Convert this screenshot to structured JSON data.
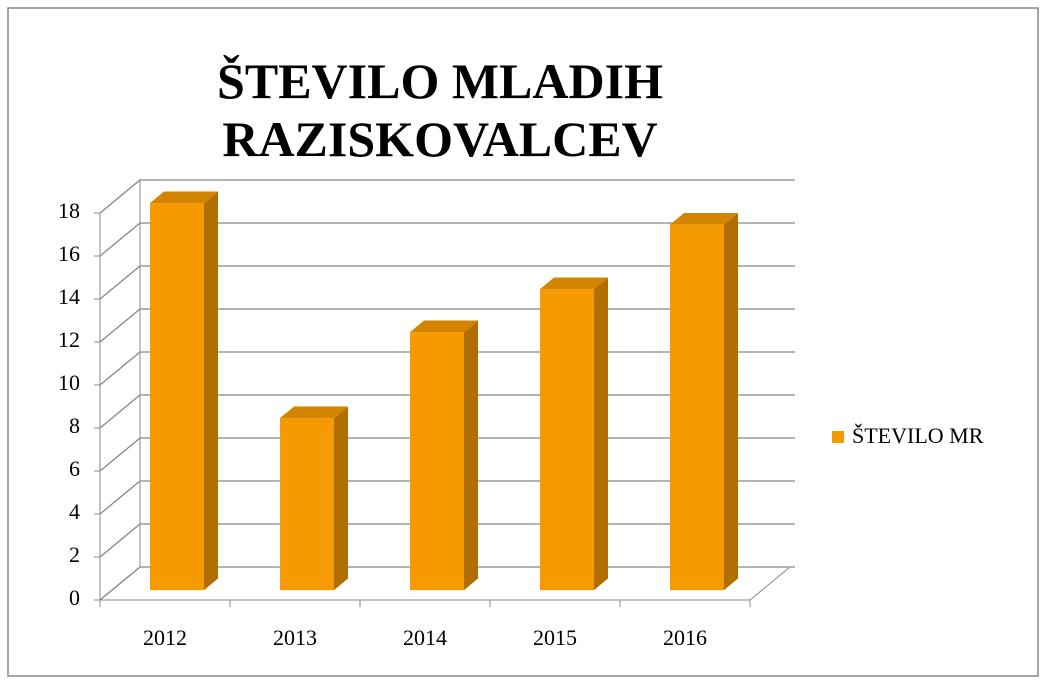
{
  "chart_data": {
    "type": "bar3d",
    "title": "ŠTEVILO MLADIH RAZISKOVALCEV",
    "categories": [
      "2012",
      "2013",
      "2014",
      "2015",
      "2016"
    ],
    "series": [
      {
        "name": "ŠTEVILO MR",
        "color": "#f59a00",
        "values": [
          18,
          8,
          12,
          14,
          17
        ]
      }
    ],
    "ylim": [
      0,
      18
    ],
    "yticks": [
      0,
      2,
      4,
      6,
      8,
      10,
      12,
      14,
      16,
      18
    ],
    "grid": true,
    "legend": "right"
  }
}
